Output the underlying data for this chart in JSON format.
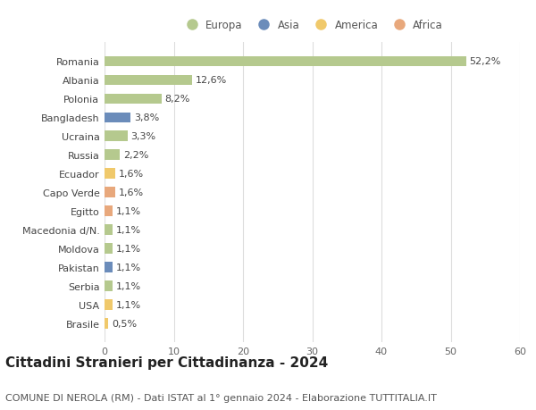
{
  "countries": [
    "Romania",
    "Albania",
    "Polonia",
    "Bangladesh",
    "Ucraina",
    "Russia",
    "Ecuador",
    "Capo Verde",
    "Egitto",
    "Macedonia d/N.",
    "Moldova",
    "Pakistan",
    "Serbia",
    "USA",
    "Brasile"
  ],
  "values": [
    52.2,
    12.6,
    8.2,
    3.8,
    3.3,
    2.2,
    1.6,
    1.6,
    1.1,
    1.1,
    1.1,
    1.1,
    1.1,
    1.1,
    0.5
  ],
  "labels": [
    "52,2%",
    "12,6%",
    "8,2%",
    "3,8%",
    "3,3%",
    "2,2%",
    "1,6%",
    "1,6%",
    "1,1%",
    "1,1%",
    "1,1%",
    "1,1%",
    "1,1%",
    "1,1%",
    "0,5%"
  ],
  "continents": [
    "Europa",
    "Europa",
    "Europa",
    "Asia",
    "Europa",
    "Europa",
    "America",
    "Africa",
    "Africa",
    "Europa",
    "Europa",
    "Asia",
    "Europa",
    "America",
    "America"
  ],
  "continent_colors": {
    "Europa": "#b5c98e",
    "Asia": "#6b8cba",
    "America": "#f0c96b",
    "Africa": "#e8a87c"
  },
  "legend_order": [
    "Europa",
    "Asia",
    "America",
    "Africa"
  ],
  "title": "Cittadini Stranieri per Cittadinanza - 2024",
  "subtitle": "COMUNE DI NEROLA (RM) - Dati ISTAT al 1° gennaio 2024 - Elaborazione TUTTITALIA.IT",
  "xlim": [
    0,
    60
  ],
  "xticks": [
    0,
    10,
    20,
    30,
    40,
    50,
    60
  ],
  "background_color": "#ffffff",
  "grid_color": "#dddddd",
  "bar_height": 0.55,
  "title_fontsize": 11,
  "subtitle_fontsize": 8,
  "label_fontsize": 8,
  "tick_fontsize": 8,
  "legend_fontsize": 8.5
}
